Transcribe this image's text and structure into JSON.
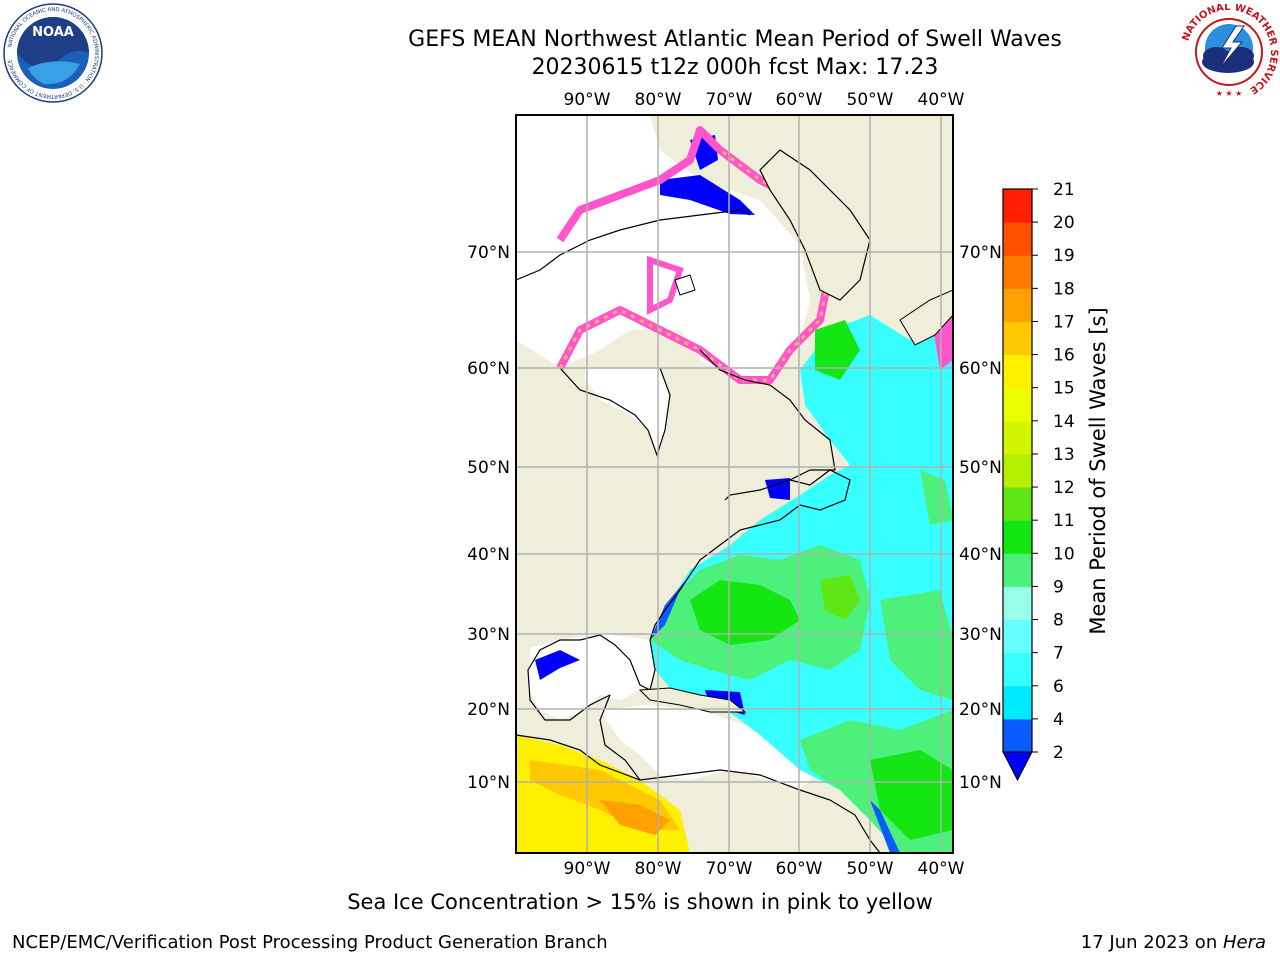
{
  "header": {
    "title": "GEFS MEAN Northwest Atlantic Mean Period of Swell Waves",
    "subtitle": "20230615 t12z 000h fcst   Max: 17.23"
  },
  "logos": {
    "noaa_text": "NOAA",
    "noaa_ring": "NATIONAL OCEANIC AND ATMOSPHERIC ADMINISTRATION · U.S. DEPARTMENT OF COMMERCE",
    "nws_ring": "NATIONAL WEATHER SERVICE"
  },
  "map": {
    "lon_labels": [
      "90°W",
      "80°W",
      "70°W",
      "60°W",
      "50°W",
      "40°W"
    ],
    "lat_labels": [
      "70°N",
      "60°N",
      "50°N",
      "40°N",
      "30°N",
      "20°N",
      "10°N"
    ],
    "colors": {
      "land": "#efeedb",
      "ocean_missing": "#ffffff",
      "grid": "#b0b0b0",
      "coast": "#000000"
    }
  },
  "colorbar": {
    "label": "Mean Period of Swell Waves [s]",
    "ticks": [
      "2",
      "4",
      "6",
      "7",
      "8",
      "9",
      "10",
      "11",
      "12",
      "13",
      "14",
      "15",
      "16",
      "17",
      "18",
      "19",
      "20",
      "21"
    ],
    "colors": [
      "#0a5cff",
      "#00eaff",
      "#37ffff",
      "#66ffff",
      "#99ffe6",
      "#4cf07a",
      "#14e614",
      "#5fe614",
      "#b4f000",
      "#d2f500",
      "#eaff00",
      "#fff000",
      "#ffc800",
      "#ffa000",
      "#ff7800",
      "#ff5000",
      "#ff1e00"
    ],
    "under_color": "#0000ff"
  },
  "footer": {
    "caption": "Sea Ice Concentration > 15% is shown in pink to yellow",
    "left": "NCEP/EMC/Verification Post Processing Product Generation Branch",
    "right_date": "17 Jun 2023 on ",
    "right_host": "Hera"
  }
}
